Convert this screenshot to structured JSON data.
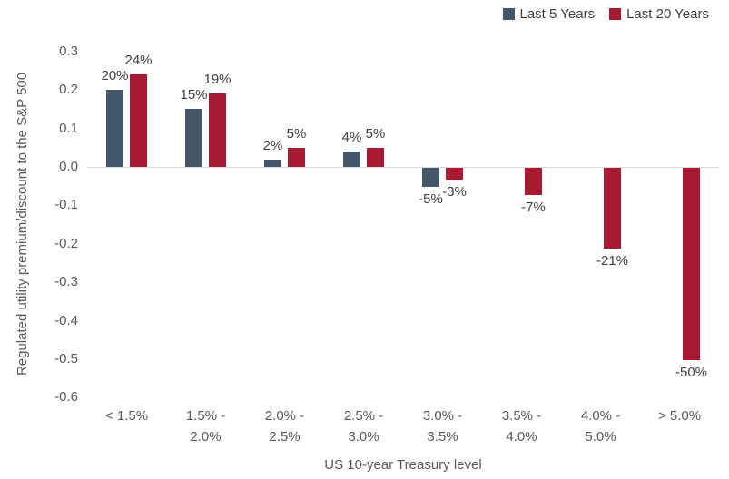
{
  "chart_data": {
    "type": "bar",
    "title": "",
    "xlabel": "US 10-year Treasury level",
    "ylabel": "Regulated utility premium/discount to the S&P 500",
    "ylim": [
      -0.6,
      0.3
    ],
    "y_ticks": [
      "0.3",
      "0.2",
      "0.1",
      "0.0",
      "-0.1",
      "-0.2",
      "-0.3",
      "-0.4",
      "-0.5",
      "-0.6"
    ],
    "grid": false,
    "legend_position": "top-right",
    "categories": [
      "< 1.5%",
      "1.5% - 2.0%",
      "2.0% - 2.5%",
      "2.5% - 3.0%",
      "3.0% - 3.5%",
      "3.5% - 4.0%",
      "4.0% - 5.0%",
      "> 5.0%"
    ],
    "category_lines": [
      [
        "< 1.5%"
      ],
      [
        "1.5% -",
        "2.0%"
      ],
      [
        "2.0% -",
        "2.5%"
      ],
      [
        "2.5% -",
        "3.0%"
      ],
      [
        "3.0% -",
        "3.5%"
      ],
      [
        "3.5% -",
        "4.0%"
      ],
      [
        "4.0% -",
        "5.0%"
      ],
      [
        "> 5.0%"
      ]
    ],
    "series": [
      {
        "name": "Last 5 Years",
        "color": "#44566A",
        "values": [
          0.2,
          0.15,
          0.02,
          0.04,
          -0.05,
          null,
          null,
          null
        ],
        "data_labels": [
          "20%",
          "15%",
          "2%",
          "4%",
          "-5%",
          null,
          null,
          null
        ]
      },
      {
        "name": "Last 20 Years",
        "color": "#A81A31",
        "values": [
          0.24,
          0.19,
          0.05,
          0.05,
          -0.03,
          -0.07,
          -0.21,
          -0.5
        ],
        "data_labels": [
          "24%",
          "19%",
          "5%",
          "5%",
          "-3%",
          "-7%",
          "-21%",
          "-50%"
        ]
      }
    ],
    "colors": {
      "series1": "#44566A",
      "series2": "#A81A31",
      "axis_text": "#595959",
      "data_label_text": "#404040",
      "zero_line": "#d9d9d9"
    }
  }
}
